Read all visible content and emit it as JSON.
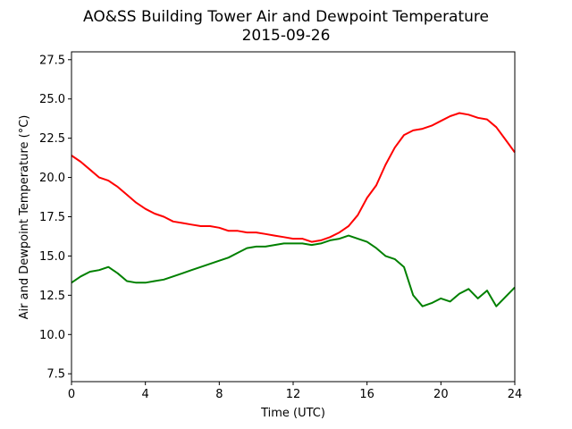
{
  "chart_data": {
    "type": "line",
    "title": "AO&SS Building Tower Air and Dewpoint Temperature",
    "subtitle": "2015-09-26",
    "xlabel": "Time (UTC)",
    "ylabel": "Air and Dewpoint Temperature (°C)",
    "xlim": [
      0,
      24
    ],
    "ylim": [
      7.0,
      28.0
    ],
    "xticks": [
      0,
      4,
      8,
      12,
      16,
      20,
      24
    ],
    "xtick_labels": [
      "0",
      "4",
      "8",
      "12",
      "16",
      "20",
      "24"
    ],
    "yticks": [
      7.5,
      10.0,
      12.5,
      15.0,
      17.5,
      20.0,
      22.5,
      25.0,
      27.5
    ],
    "ytick_labels": [
      "7.5",
      "10.0",
      "12.5",
      "15.0",
      "17.5",
      "20.0",
      "22.5",
      "25.0",
      "27.5"
    ],
    "grid": false,
    "legend": "none",
    "series": [
      {
        "color": "#ff0000",
        "x": [
          0,
          0.5,
          1,
          1.5,
          2,
          2.5,
          3,
          3.5,
          4,
          4.5,
          5,
          5.5,
          6,
          6.5,
          7,
          7.5,
          8,
          8.5,
          9,
          9.5,
          10,
          10.5,
          11,
          11.5,
          12,
          12.5,
          13,
          13.5,
          14,
          14.5,
          15,
          15.5,
          16,
          16.5,
          17,
          17.5,
          18,
          18.5,
          19,
          19.5,
          20,
          20.5,
          21,
          21.5,
          22,
          22.5,
          23,
          23.5,
          24
        ],
        "y": [
          21.4,
          21.0,
          20.5,
          20.0,
          19.8,
          19.4,
          18.9,
          18.4,
          18.0,
          17.7,
          17.5,
          17.2,
          17.1,
          17.0,
          16.9,
          16.9,
          16.8,
          16.6,
          16.6,
          16.5,
          16.5,
          16.4,
          16.3,
          16.2,
          16.1,
          16.1,
          15.9,
          16.0,
          16.2,
          16.5,
          16.9,
          17.6,
          18.7,
          19.5,
          20.8,
          21.9,
          22.7,
          23.0,
          23.1,
          23.3,
          23.6,
          23.9,
          24.1,
          24.0,
          23.8,
          23.7,
          23.2,
          22.4,
          21.6
        ]
      },
      {
        "color": "#008000",
        "x": [
          0,
          0.5,
          1,
          1.5,
          2,
          2.5,
          3,
          3.5,
          4,
          4.5,
          5,
          5.5,
          6,
          6.5,
          7,
          7.5,
          8,
          8.5,
          9,
          9.5,
          10,
          10.5,
          11,
          11.5,
          12,
          12.5,
          13,
          13.5,
          14,
          14.5,
          15,
          15.5,
          16,
          16.5,
          17,
          17.5,
          18,
          18.5,
          19,
          19.5,
          20,
          20.5,
          21,
          21.5,
          22,
          22.5,
          23,
          23.5,
          24
        ],
        "y": [
          13.3,
          13.7,
          14.0,
          14.1,
          14.3,
          13.9,
          13.4,
          13.3,
          13.3,
          13.4,
          13.5,
          13.7,
          13.9,
          14.1,
          14.3,
          14.5,
          14.7,
          14.9,
          15.2,
          15.5,
          15.6,
          15.6,
          15.7,
          15.8,
          15.8,
          15.8,
          15.7,
          15.8,
          16.0,
          16.1,
          16.3,
          16.1,
          15.9,
          15.5,
          15.0,
          14.8,
          14.3,
          12.5,
          11.8,
          12.0,
          12.3,
          12.1,
          12.6,
          12.9,
          12.3,
          12.8,
          11.8,
          12.4,
          13.0
        ]
      }
    ]
  }
}
